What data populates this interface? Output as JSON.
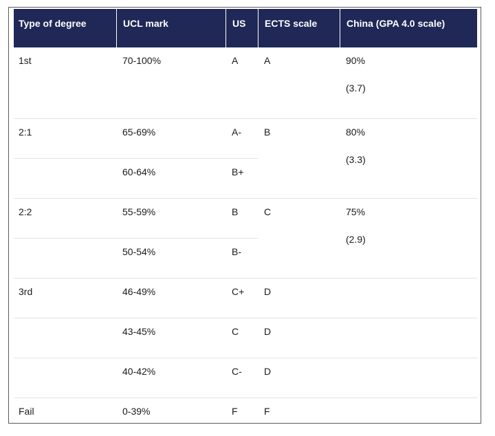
{
  "headers": [
    "Type of degree",
    "UCL mark",
    "US",
    "ECTS scale",
    "China (GPA 4.0 scale)"
  ],
  "rows": {
    "first": {
      "degree": "1st",
      "mark": "70-100%",
      "us": "A",
      "ects": "A",
      "china_pct": "90%",
      "china_gpa": "(3.7)"
    },
    "upper_second": {
      "degree": "2:1",
      "mark_a": "65-69%",
      "us_a": "A-",
      "mark_b": "60-64%",
      "us_b": "B+",
      "ects": "B",
      "china_pct": "80%",
      "china_gpa": "(3.3)"
    },
    "lower_second": {
      "degree": "2:2",
      "mark_a": "55-59%",
      "us_a": "B",
      "mark_b": "50-54%",
      "us_b": "B-",
      "ects": "C",
      "china_pct": "75%",
      "china_gpa": "(2.9)"
    },
    "third": {
      "degree": "3rd",
      "mark_a": "46-49%",
      "us_a": "C+",
      "ects_a": "D",
      "mark_b": "43-45%",
      "us_b": "C",
      "ects_b": "D",
      "mark_c": "40-42%",
      "us_c": "C-",
      "ects_c": "D"
    },
    "fail": {
      "degree": "Fail",
      "mark": "0-39%",
      "us": "F",
      "ects": "F"
    }
  },
  "colors": {
    "header_bg": "#1f2856",
    "header_text": "#ffffff",
    "row_divider": "#e2e2e2"
  }
}
